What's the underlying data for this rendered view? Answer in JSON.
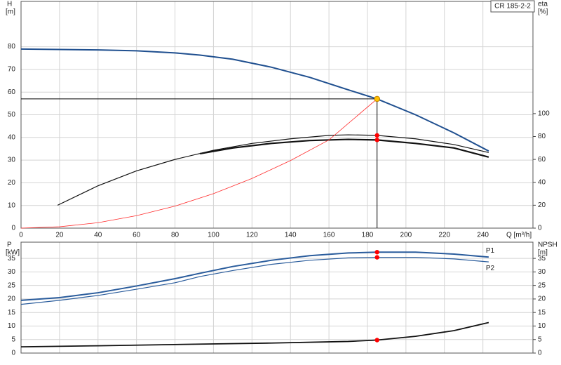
{
  "chart_data": [
    {
      "type": "line",
      "annotation": "CR 185-2-2",
      "y_label": "H",
      "y_unit": "[m]",
      "y2_label": "eta",
      "y2_unit": "[%]",
      "x_label": "Q [m³/h]",
      "xlim": [
        0,
        266
      ],
      "xticks": [
        0,
        20,
        40,
        60,
        80,
        100,
        120,
        140,
        160,
        180,
        200,
        220,
        240
      ],
      "ylim": [
        0,
        100
      ],
      "yticks": [
        0,
        10,
        20,
        30,
        40,
        50,
        60,
        70,
        80
      ],
      "y2lim": [
        0,
        198
      ],
      "y2ticks": [
        0,
        20,
        40,
        60,
        80,
        100
      ],
      "grid": true,
      "series": [
        {
          "color": "#1f4f8f",
          "width": 2,
          "x": [
            0,
            20,
            40,
            60,
            80,
            93,
            110,
            130,
            150,
            170,
            185,
            205,
            225,
            243
          ],
          "values": [
            79,
            78.8,
            78.6,
            78.2,
            77.3,
            76.3,
            74.5,
            71,
            66.5,
            61,
            57,
            50,
            42,
            34
          ]
        },
        {
          "color": "#111111",
          "width": 1.2,
          "axis": "y2",
          "x": [
            19,
            40,
            60,
            80,
            100,
            120,
            140,
            160,
            170,
            185,
            205,
            225,
            243
          ],
          "values": [
            20,
            37,
            50,
            60,
            68,
            74,
            78,
            81,
            81.5,
            81,
            78,
            73,
            66
          ]
        },
        {
          "color": "#111111",
          "width": 2.2,
          "axis": "y2",
          "x": [
            93,
            110,
            130,
            150,
            170,
            185,
            205,
            225,
            243
          ],
          "values": [
            65,
            70,
            74,
            76.5,
            77.5,
            77,
            74,
            70,
            62
          ]
        },
        {
          "color": "#ff2a2a",
          "width": 0.8,
          "x": [
            0,
            20,
            40,
            60,
            80,
            100,
            120,
            140,
            160,
            185
          ],
          "values": [
            0,
            0.6,
            2.4,
            5.5,
            9.7,
            15.2,
            21.9,
            29.8,
            38.9,
            57
          ]
        }
      ],
      "duty_point": {
        "x": 185,
        "y": 57,
        "color": "#ffc000"
      },
      "markers": [
        {
          "x": 185,
          "y": 81,
          "axis": "y2",
          "color": "#ff0000"
        },
        {
          "x": 185,
          "y": 77,
          "axis": "y2",
          "color": "#ff0000"
        }
      ]
    },
    {
      "type": "line",
      "y_label": "P",
      "y_unit": "[kW]",
      "y2_label": "NPSH",
      "y2_unit": "[m]",
      "xlim": [
        0,
        266
      ],
      "ylim": [
        0,
        41
      ],
      "yticks": [
        0,
        5,
        10,
        15,
        20,
        25,
        30,
        35
      ],
      "y2lim": [
        0,
        41
      ],
      "y2ticks": [
        0,
        5,
        10,
        15,
        20,
        25,
        30,
        35
      ],
      "grid": true,
      "series": [
        {
          "name": "P1",
          "color": "#2a5c9c",
          "width": 2,
          "x": [
            0,
            20,
            40,
            60,
            80,
            93,
            110,
            130,
            150,
            170,
            185,
            205,
            225,
            243
          ],
          "values": [
            19.5,
            20.5,
            22.3,
            24.8,
            27.5,
            29.5,
            32,
            34.3,
            36,
            37,
            37.3,
            37.3,
            36.6,
            35.5
          ]
        },
        {
          "name": "P2",
          "color": "#2a5c9c",
          "width": 1.2,
          "x": [
            0,
            20,
            40,
            60,
            80,
            93,
            110,
            130,
            150,
            170,
            185,
            205,
            225,
            243
          ],
          "values": [
            18,
            19.5,
            21.3,
            23.6,
            26,
            28.3,
            30.5,
            32.8,
            34.3,
            35.2,
            35.4,
            35.4,
            34.8,
            33.7
          ]
        },
        {
          "color": "#111111",
          "width": 1.8,
          "axis": "y2",
          "x": [
            0,
            40,
            93,
            130,
            170,
            185,
            205,
            225,
            243
          ],
          "values": [
            2.3,
            2.7,
            3.3,
            3.7,
            4.3,
            4.8,
            6.2,
            8.3,
            11.3
          ]
        }
      ],
      "markers": [
        {
          "x": 185,
          "y": 37.3,
          "color": "#ff0000"
        },
        {
          "x": 185,
          "y": 35.4,
          "color": "#ff0000"
        },
        {
          "x": 185,
          "y": 4.8,
          "axis": "y2",
          "color": "#ff0000"
        }
      ]
    }
  ]
}
